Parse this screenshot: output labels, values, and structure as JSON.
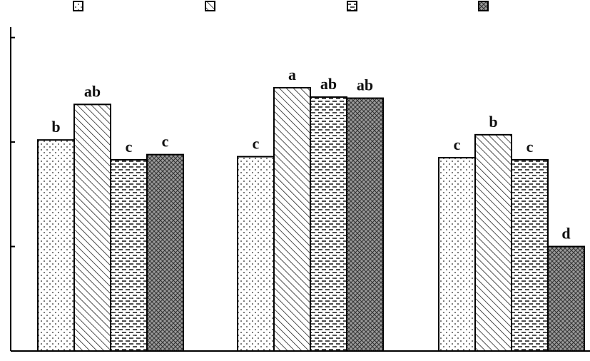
{
  "chart_data": {
    "type": "bar",
    "title": "",
    "xlabel": "",
    "ylabel": "",
    "categories": [
      "",
      "",
      ""
    ],
    "ylim": [
      0,
      3.1
    ],
    "yticks": [
      0,
      1,
      2,
      3
    ],
    "grid": false,
    "legend": {
      "position": "top",
      "labels_visible": false
    },
    "series": [
      {
        "pattern": "dots",
        "values": [
          2.02,
          1.86,
          1.85
        ],
        "letters": [
          "b",
          "c",
          "c"
        ]
      },
      {
        "pattern": "diagonal-hatch",
        "values": [
          2.36,
          2.52,
          2.07
        ],
        "letters": [
          "ab",
          "a",
          "b"
        ]
      },
      {
        "pattern": "horizontal-dashes",
        "values": [
          1.83,
          2.43,
          1.83
        ],
        "letters": [
          "c",
          "ab",
          "c"
        ]
      },
      {
        "pattern": "crosshatch",
        "values": [
          1.88,
          2.42,
          1.0
        ],
        "letters": [
          "c",
          "ab",
          "d"
        ]
      }
    ],
    "colors": {
      "bar_outline": "#000000",
      "pattern_ink": "#222222",
      "crosshatch_fill": "#9a9a9a"
    }
  }
}
